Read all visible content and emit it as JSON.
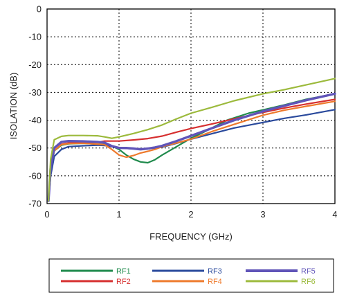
{
  "chart_data": {
    "type": "line",
    "xlabel": "FREQUENCY (GHz)",
    "ylabel": "ISOLATION (dB)",
    "xlim": [
      0,
      4
    ],
    "ylim": [
      -70,
      0
    ],
    "x_ticks": [
      0,
      1,
      2,
      3,
      4
    ],
    "y_ticks": [
      0,
      -10,
      -20,
      -30,
      -40,
      -50,
      -60,
      -70
    ],
    "grid": "dotted",
    "legend_position": "bottom",
    "series": [
      {
        "name": "RF1",
        "color": "#1f8a4c",
        "x": [
          0.02,
          0.05,
          0.1,
          0.2,
          0.3,
          0.5,
          0.7,
          0.8,
          0.9,
          1.0,
          1.1,
          1.2,
          1.3,
          1.4,
          1.5,
          1.6,
          1.8,
          2.0,
          2.2,
          2.5,
          2.8,
          3.0,
          3.3,
          3.6,
          4.0
        ],
        "y": [
          -69,
          -58,
          -51,
          -49,
          -48.5,
          -48.3,
          -48.6,
          -48.7,
          -49.3,
          -50.5,
          -52.5,
          -54,
          -55,
          -55.3,
          -54.2,
          -52.5,
          -49.5,
          -46.5,
          -44,
          -40,
          -37.5,
          -36.3,
          -34.5,
          -32.5,
          -30.5
        ]
      },
      {
        "name": "RF2",
        "color": "#d62f2f",
        "x": [
          0.02,
          0.05,
          0.1,
          0.2,
          0.3,
          0.5,
          0.7,
          0.8,
          1.0,
          1.2,
          1.4,
          1.6,
          1.8,
          2.0,
          2.3,
          2.6,
          3.0,
          3.3,
          3.6,
          4.0
        ],
        "y": [
          -69,
          -57,
          -51,
          -48.7,
          -48.2,
          -48,
          -48,
          -47.5,
          -47.5,
          -47.1,
          -46.6,
          -45.7,
          -44.3,
          -43,
          -41.3,
          -39.5,
          -37.2,
          -35.6,
          -34.2,
          -32.5
        ]
      },
      {
        "name": "RF3",
        "color": "#2a4a9c",
        "x": [
          0.02,
          0.05,
          0.1,
          0.2,
          0.3,
          0.5,
          0.7,
          0.8,
          1.0,
          1.2,
          1.4,
          1.6,
          1.8,
          2.0,
          2.3,
          2.6,
          3.0,
          3.3,
          3.6,
          4.0
        ],
        "y": [
          -69,
          -60,
          -53,
          -50.5,
          -49.5,
          -49.2,
          -49,
          -49.1,
          -50,
          -50.3,
          -50.3,
          -49.7,
          -48.3,
          -46.8,
          -44.8,
          -42.8,
          -40.8,
          -39.3,
          -38.1,
          -36.2
        ]
      },
      {
        "name": "RF4",
        "color": "#ee7a2c",
        "x": [
          0.02,
          0.05,
          0.1,
          0.2,
          0.3,
          0.5,
          0.7,
          0.8,
          0.9,
          1.0,
          1.1,
          1.2,
          1.3,
          1.4,
          1.5,
          1.6,
          1.8,
          2.0,
          2.3,
          2.6,
          3.0,
          3.3,
          3.6,
          4.0
        ],
        "y": [
          -69,
          -57,
          -51,
          -48.8,
          -48.4,
          -48.3,
          -48.6,
          -48.8,
          -50.5,
          -52.5,
          -53.3,
          -52.7,
          -51.8,
          -51.2,
          -50.5,
          -49.5,
          -48.2,
          -46.8,
          -44,
          -41.5,
          -38.2,
          -36.4,
          -35,
          -33.2
        ]
      },
      {
        "name": "RF5",
        "color": "#6054b8",
        "x": [
          0.02,
          0.05,
          0.1,
          0.2,
          0.3,
          0.5,
          0.7,
          0.8,
          0.9,
          1.0,
          1.1,
          1.2,
          1.3,
          1.4,
          1.5,
          1.6,
          1.8,
          2.0,
          2.3,
          2.6,
          3.0,
          3.3,
          3.6,
          4.0
        ],
        "y": [
          -69,
          -57,
          -50,
          -47.8,
          -47.5,
          -47.6,
          -47.8,
          -48.1,
          -49.3,
          -50,
          -50,
          -50.2,
          -50.5,
          -50.2,
          -49.8,
          -49.2,
          -47.5,
          -45.6,
          -42.8,
          -40,
          -36.8,
          -34.8,
          -32.8,
          -30.5
        ]
      },
      {
        "name": "RF6",
        "color": "#9cba3c",
        "x": [
          0.02,
          0.05,
          0.1,
          0.2,
          0.3,
          0.5,
          0.7,
          0.8,
          0.9,
          1.0,
          1.2,
          1.4,
          1.6,
          1.8,
          2.0,
          2.3,
          2.6,
          3.0,
          3.3,
          3.6,
          4.0
        ],
        "y": [
          -69,
          -54,
          -47,
          -45.8,
          -45.5,
          -45.5,
          -45.6,
          -46,
          -46.5,
          -46,
          -44.8,
          -43.4,
          -41.7,
          -39.5,
          -37.5,
          -35.3,
          -33,
          -30.5,
          -29,
          -27.3,
          -25
        ]
      }
    ]
  }
}
